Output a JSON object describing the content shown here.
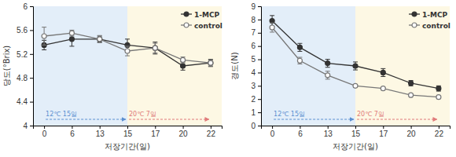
{
  "chart_data": [
    {
      "type": "line",
      "y_label": "당도(°Brix)",
      "x_label": "저장기간(일)",
      "categories": [
        "0",
        "6",
        "13",
        "15",
        "17",
        "20",
        "22"
      ],
      "ylim": [
        4,
        6
      ],
      "yticks": [
        4,
        4.4,
        4.8,
        5.2,
        5.6,
        6
      ],
      "legend": "upper right",
      "series": [
        {
          "name": "1-MCP",
          "color": "#333333",
          "marker": "filled_circle",
          "line_style": "solid",
          "values": [
            5.35,
            5.45,
            5.45,
            5.35,
            5.3,
            5.0,
            5.05
          ],
          "errors": [
            0.08,
            0.12,
            0.05,
            0.1,
            0.1,
            0.07,
            0.06
          ]
        },
        {
          "name": "control",
          "color": "#777777",
          "marker": "open_circle",
          "line_style": "solid",
          "values": [
            5.5,
            5.55,
            5.45,
            5.25,
            5.3,
            5.1,
            5.05
          ],
          "errors": [
            0.15,
            0.05,
            0.06,
            0.08,
            0.08,
            0.05,
            0.05
          ]
        }
      ],
      "annotations": [
        {
          "text": "12℃ 15일",
          "from": "0",
          "to": "15",
          "color": "#e3eef9"
        },
        {
          "text": "20℃ 7일",
          "from": "15",
          "to": "22",
          "color": "#fdf8e4"
        }
      ]
    },
    {
      "type": "line",
      "y_label": "경도(N)",
      "x_label": "저장기간(일)",
      "categories": [
        "0",
        "6",
        "13",
        "15",
        "17",
        "20",
        "22"
      ],
      "ylim": [
        0,
        9
      ],
      "yticks": [
        0,
        1,
        2,
        3,
        4,
        5,
        6,
        7,
        8,
        9
      ],
      "legend": "upper right",
      "series": [
        {
          "name": "1-MCP",
          "color": "#333333",
          "marker": "filled_circle",
          "line_style": "solid",
          "values": [
            7.9,
            5.9,
            4.7,
            4.5,
            4.0,
            3.2,
            2.8
          ],
          "errors": [
            0.4,
            0.3,
            0.3,
            0.3,
            0.3,
            0.2,
            0.2
          ]
        },
        {
          "name": "control",
          "color": "#777777",
          "marker": "open_circle",
          "line_style": "solid",
          "values": [
            7.4,
            4.9,
            3.8,
            3.0,
            2.8,
            2.3,
            2.15
          ],
          "errors": [
            0.35,
            0.25,
            0.3,
            0.05,
            0.05,
            0.05,
            0.05
          ]
        }
      ],
      "annotations": [
        {
          "text": "12℃ 15일",
          "from": "0",
          "to": "15",
          "color": "#e3eef9"
        },
        {
          "text": "20℃ 7일",
          "from": "15",
          "to": "22",
          "color": "#fdf8e4"
        }
      ]
    }
  ]
}
